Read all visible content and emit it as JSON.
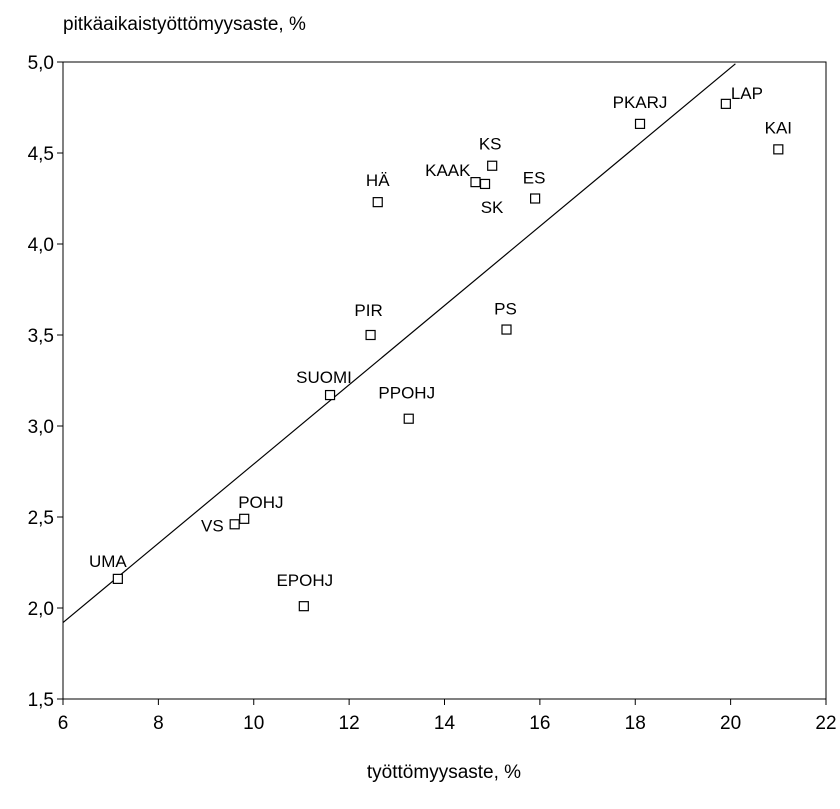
{
  "chart_data": {
    "type": "scatter",
    "title": "",
    "ylabel": "pitkäaikaistyöttömyysaste, %",
    "xlabel": "työttömyysaste, %",
    "xlim": [
      6,
      22
    ],
    "ylim": [
      1.5,
      5.0
    ],
    "xticks": [
      6,
      8,
      10,
      12,
      14,
      16,
      18,
      20,
      22
    ],
    "yticks": [
      1.5,
      2.0,
      2.5,
      3.0,
      3.5,
      4.0,
      4.5,
      5.0
    ],
    "xtick_labels": [
      "6",
      "8",
      "10",
      "12",
      "14",
      "16",
      "18",
      "20",
      "22"
    ],
    "ytick_labels": [
      "1,5",
      "2,0",
      "2,5",
      "3,0",
      "3,5",
      "4,0",
      "4,5",
      "5,0"
    ],
    "grid": false,
    "marker": "open-square",
    "points": [
      {
        "label": "UMA",
        "x": 7.15,
        "y": 2.16
      },
      {
        "label": "VS",
        "x": 9.6,
        "y": 2.46
      },
      {
        "label": "POHJ",
        "x": 9.8,
        "y": 2.49
      },
      {
        "label": "EPOHJ",
        "x": 11.05,
        "y": 2.01
      },
      {
        "label": "SUOMI",
        "x": 11.6,
        "y": 3.17
      },
      {
        "label": "PIR",
        "x": 12.45,
        "y": 3.5
      },
      {
        "label": "HÄ",
        "x": 12.6,
        "y": 4.23
      },
      {
        "label": "PPOHJ",
        "x": 13.25,
        "y": 3.04
      },
      {
        "label": "KAAK",
        "x": 14.65,
        "y": 4.34
      },
      {
        "label": "SK",
        "x": 14.85,
        "y": 4.33
      },
      {
        "label": "KS",
        "x": 15.0,
        "y": 4.43
      },
      {
        "label": "PS",
        "x": 15.3,
        "y": 3.53
      },
      {
        "label": "ES",
        "x": 15.9,
        "y": 4.25
      },
      {
        "label": "PKARJ",
        "x": 18.1,
        "y": 4.66
      },
      {
        "label": "LAP",
        "x": 19.9,
        "y": 4.77
      },
      {
        "label": "KAI",
        "x": 21.0,
        "y": 4.52
      }
    ],
    "trendline": {
      "x": [
        6,
        20.1
      ],
      "y": [
        1.92,
        4.99
      ]
    }
  }
}
